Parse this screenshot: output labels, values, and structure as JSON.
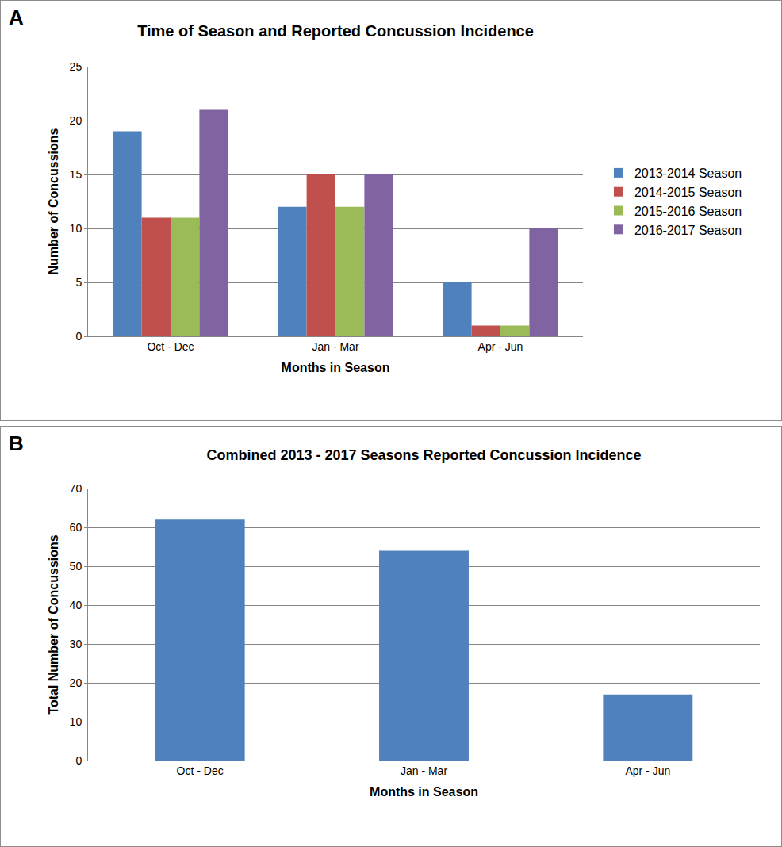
{
  "chart_data": [
    {
      "type": "bar",
      "title": "Time of Season and Reported Concussion Incidence",
      "annotations": [
        "A"
      ],
      "x_label": "Months in Season",
      "y_label": "Number of Concussions",
      "categories": [
        "Oct - Dec",
        "Jan - Mar",
        "Apr - Jun"
      ],
      "series": [
        {
          "name": "2013-2014 Season",
          "color": "#4F81BD",
          "values": [
            19,
            12,
            5
          ]
        },
        {
          "name": "2014-2015 Season",
          "color": "#C0504D",
          "values": [
            11,
            15,
            1
          ]
        },
        {
          "name": "2015-2016 Season",
          "color": "#9BBB59",
          "values": [
            11,
            12,
            1
          ]
        },
        {
          "name": "2016-2017 Season",
          "color": "#8064A2",
          "values": [
            21,
            15,
            10
          ]
        }
      ],
      "ylim": [
        0,
        25
      ],
      "yticks": [
        0,
        5,
        10,
        15,
        20,
        25
      ],
      "grid": true,
      "legend": "right"
    },
    {
      "type": "bar",
      "title": "Combined 2013 - 2017 Seasons Reported Concussion Incidence",
      "annotations": [
        "B"
      ],
      "x_label": "Months in Season",
      "y_label": "Total Number of Concussions",
      "categories": [
        "Oct - Dec",
        "Jan - Mar",
        "Apr - Jun"
      ],
      "values": [
        62,
        54,
        17
      ],
      "color": "#4F81BD",
      "ylim": [
        0,
        70
      ],
      "yticks": [
        0,
        10,
        20,
        30,
        40,
        50,
        60,
        70
      ],
      "grid": true
    }
  ]
}
